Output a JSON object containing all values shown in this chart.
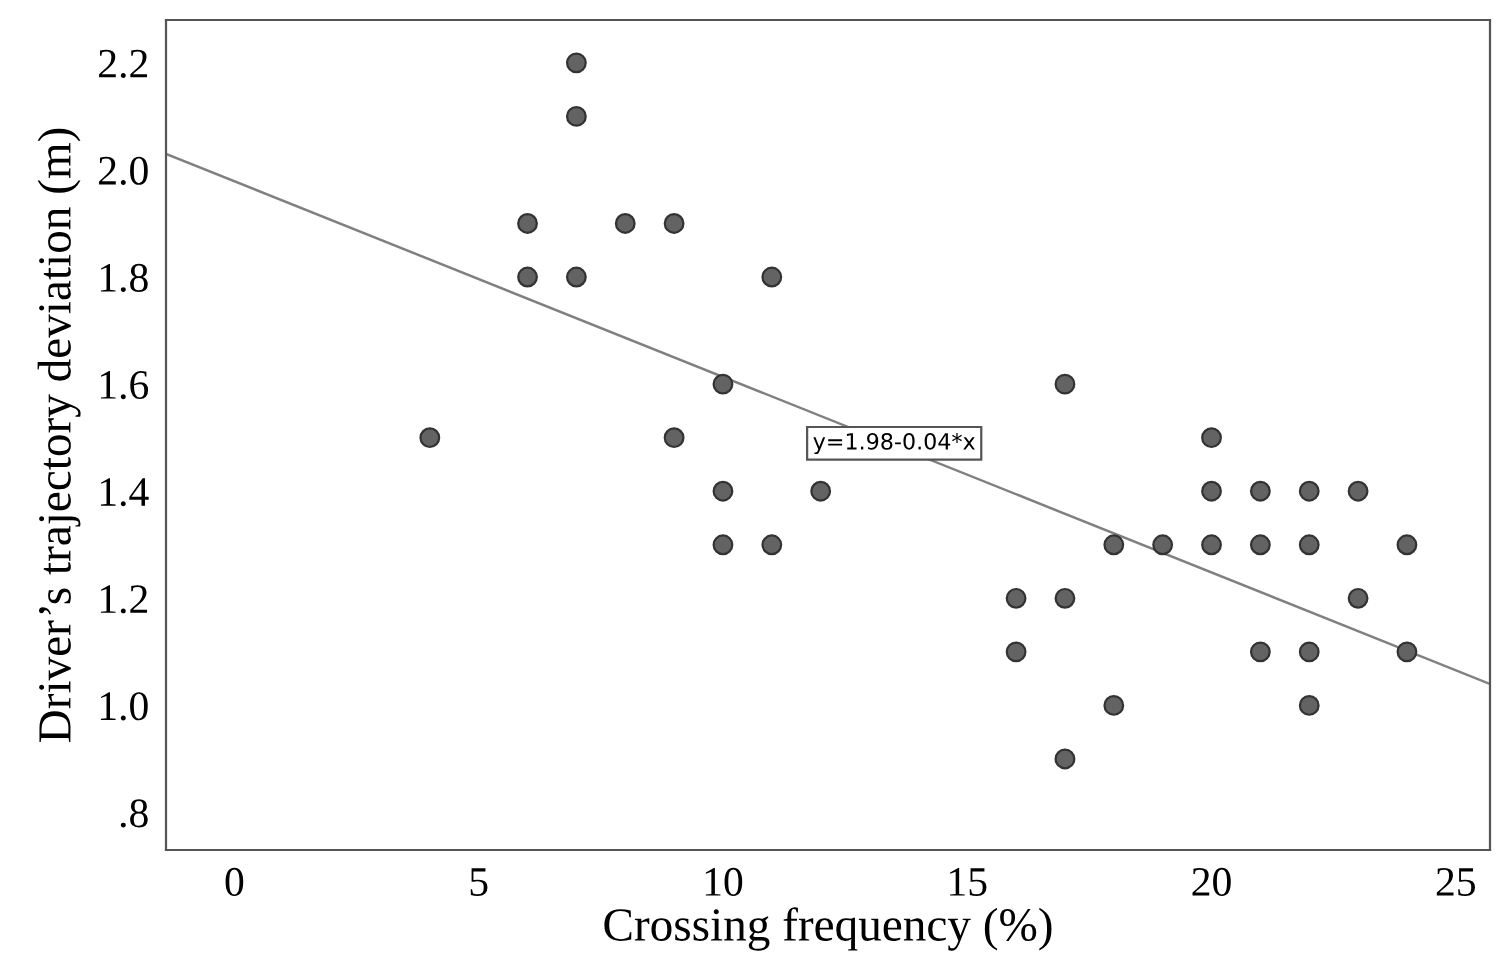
{
  "chart_data": {
    "type": "scatter",
    "xlabel": "Crossing frequency (%)",
    "ylabel": "Driver’s trajectory deviation (m)",
    "xlim": [
      -1.4,
      25.7
    ],
    "ylim": [
      0.73,
      2.28
    ],
    "xticks": [
      0,
      5,
      10,
      15,
      20,
      25
    ],
    "yticks": [
      {
        "value": 0.8,
        "label": ".8"
      },
      {
        "value": 1.0,
        "label": "1.0"
      },
      1.2,
      1.4,
      1.6,
      1.8,
      {
        "value": 2.0,
        "label": "2.0"
      },
      2.2
    ],
    "grid": false,
    "series": [
      {
        "color": "#636363",
        "marker": "circle",
        "x": [
          4,
          6,
          6,
          7,
          7,
          7,
          8,
          9,
          9,
          10,
          10,
          10,
          11,
          11,
          12,
          16,
          16,
          17,
          17,
          17,
          18,
          18,
          19,
          20,
          20,
          20,
          21,
          21,
          21,
          22,
          22,
          22,
          22,
          23,
          23,
          24,
          24
        ],
        "values": [
          1.5,
          1.9,
          1.8,
          2.2,
          2.1,
          1.8,
          1.9,
          1.9,
          1.5,
          1.6,
          1.4,
          1.3,
          1.8,
          1.3,
          1.4,
          1.2,
          1.1,
          1.6,
          1.2,
          0.9,
          1.3,
          1.0,
          1.3,
          1.5,
          1.4,
          1.3,
          1.4,
          1.3,
          1.1,
          1.4,
          1.3,
          1.1,
          1.0,
          1.4,
          1.2,
          1.3,
          1.1
        ]
      },
      {
        "type": "line",
        "color": "#808080",
        "x": [
          -1.4,
          25.7
        ],
        "values": [
          2.03,
          1.04
        ]
      }
    ],
    "annotations": [
      "y=1.98-0.04*x"
    ]
  }
}
